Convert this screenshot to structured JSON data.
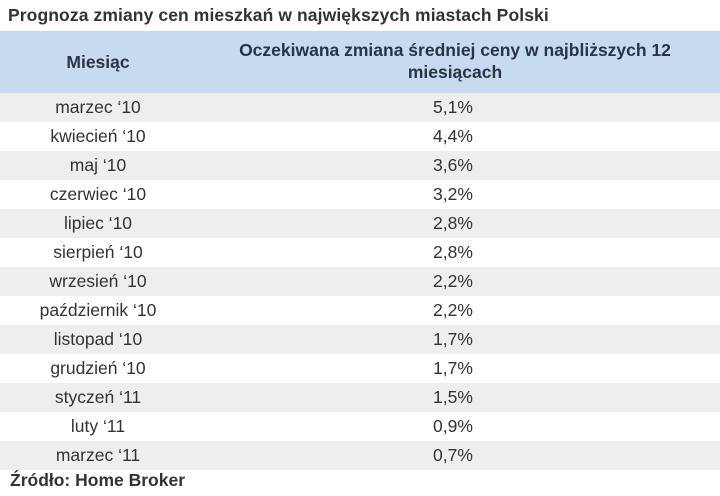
{
  "title": "Prognoza zmiany cen mieszkań w największych miastach Polski",
  "table": {
    "headers": {
      "month": "Miesiąc",
      "value": "Oczekiwana zmiana średniej ceny w najbliższych 12 miesiącach"
    },
    "rows": [
      {
        "month": "marzec ‘10",
        "value": "5,1%"
      },
      {
        "month": "kwiecień ‘10",
        "value": "4,4%"
      },
      {
        "month": "maj ‘10",
        "value": "3,6%"
      },
      {
        "month": "czerwiec ‘10",
        "value": "3,2%"
      },
      {
        "month": "lipiec ‘10",
        "value": "2,8%"
      },
      {
        "month": "sierpień ‘10",
        "value": "2,8%"
      },
      {
        "month": "wrzesień ‘10",
        "value": "2,2%"
      },
      {
        "month": "październik ‘10",
        "value": "2,2%"
      },
      {
        "month": "listopad ‘10",
        "value": "1,7%"
      },
      {
        "month": "grudzień ‘10",
        "value": "1,7%"
      },
      {
        "month": "styczeń ‘11",
        "value": "1,5%"
      },
      {
        "month": "luty ‘11",
        "value": "0,9%"
      },
      {
        "month": "marzec ‘11",
        "value": "0,7%"
      }
    ]
  },
  "source": "Źródło: Home Broker",
  "colors": {
    "header_bg": "#c6dbf0",
    "header_text": "#2b3440",
    "row_alt_bg": "#efeeed",
    "row_bg": "#ffffff",
    "text": "#333333"
  }
}
